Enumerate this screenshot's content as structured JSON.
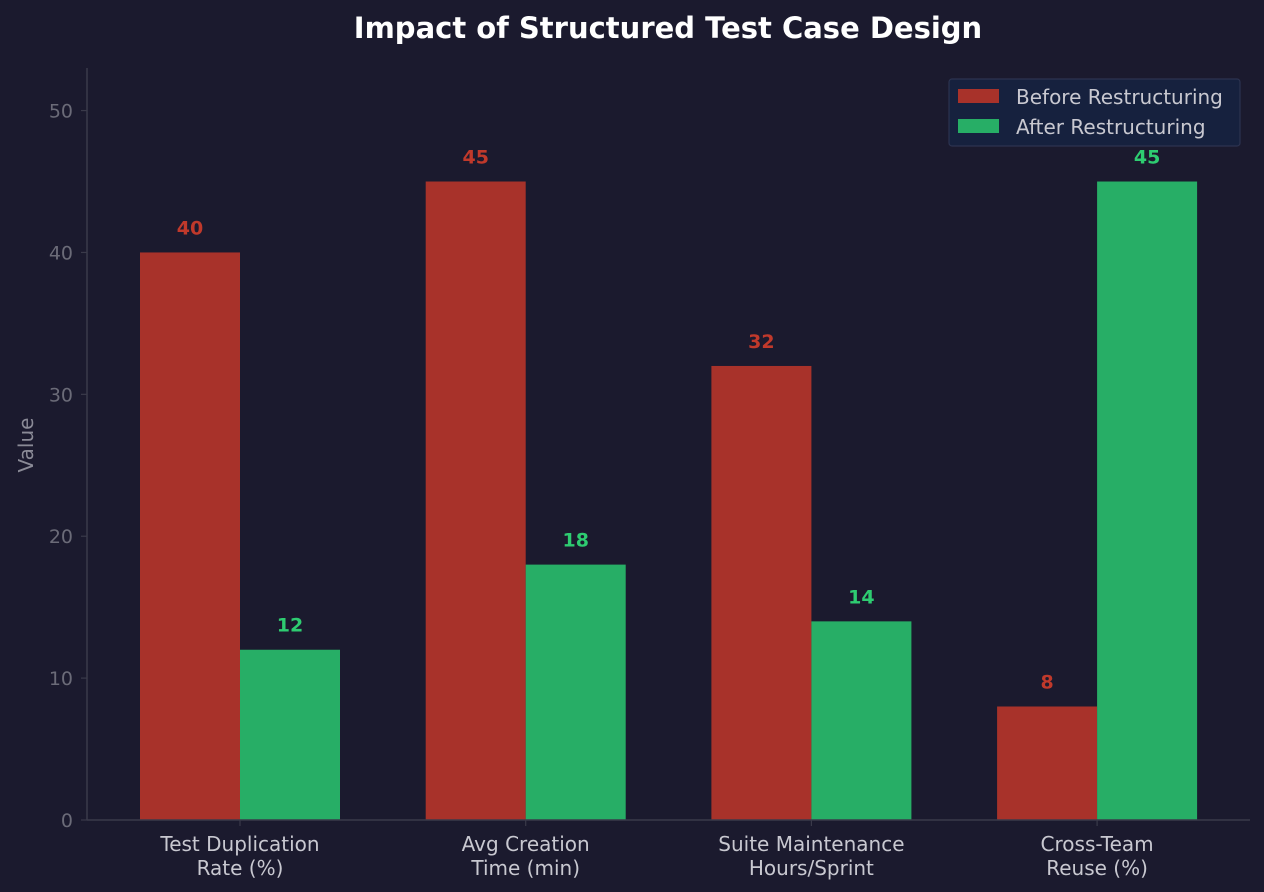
{
  "chart_data": {
    "type": "bar",
    "title": "Impact of Structured Test Case Design",
    "xlabel": "",
    "ylabel": "Value",
    "ylim": [
      0,
      53
    ],
    "yticks": [
      0,
      10,
      20,
      30,
      40,
      50
    ],
    "categories": [
      [
        "Test Duplication",
        "Rate (%)"
      ],
      [
        "Avg Creation",
        "Time (min)"
      ],
      [
        "Suite Maintenance",
        "Hours/Sprint"
      ],
      [
        "Cross-Team",
        "Reuse (%)"
      ]
    ],
    "series": [
      {
        "name": "Before Restructuring",
        "color": "#a8322a",
        "label_color": "#c0392b",
        "values": [
          40,
          45,
          32,
          8
        ]
      },
      {
        "name": "After Restructuring",
        "color": "#27ae66",
        "label_color": "#2ecc71",
        "values": [
          12,
          18,
          14,
          45
        ]
      }
    ],
    "legend_position": "top-right",
    "grid": false
  },
  "colors": {
    "background": "#1b1a2e",
    "title": "#ffffff",
    "axis": "#3a3a4a",
    "tick_label": "#6b6b78",
    "category_label": "#c8c8d0",
    "ylabel": "#8a8a96",
    "legend_bg": "#16213e",
    "legend_border": "#2c3350",
    "legend_text": "#c8c8d0"
  }
}
